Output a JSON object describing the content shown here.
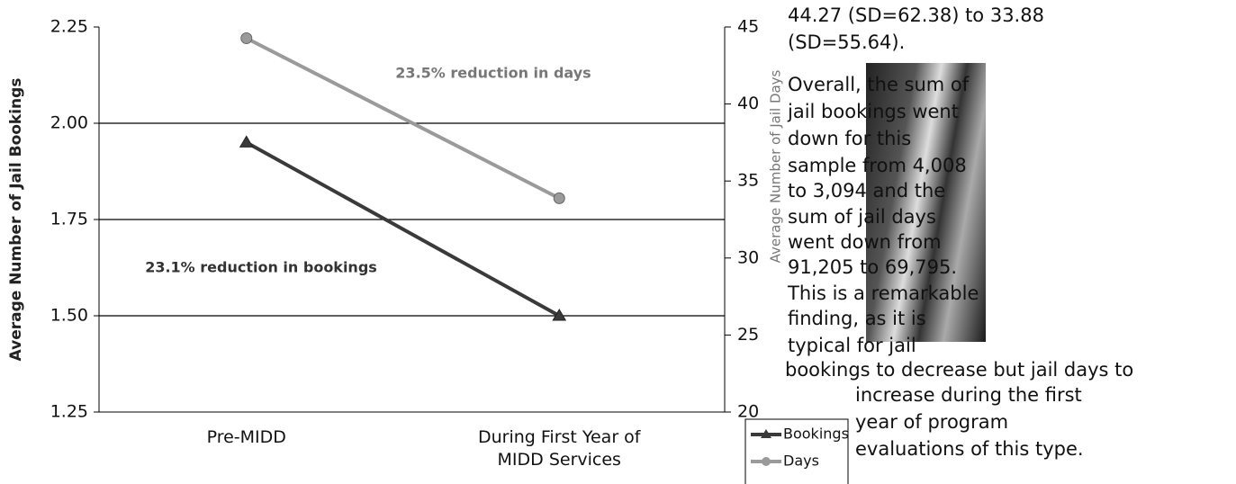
{
  "chart_data": {
    "type": "line",
    "categories": [
      "Pre-MIDD",
      "During First Year of MIDD Services"
    ],
    "ylabel": "Average Number of Jail Bookings",
    "y2label": "Average Number of Jail Days",
    "ylim": [
      1.25,
      2.25
    ],
    "yticks": [
      1.25,
      {
        "value": 1.5,
        "label": "1.50"
      },
      1.75,
      {
        "value": 2,
        "label": "2.00"
      },
      2.25
    ],
    "y2lim": [
      20,
      45
    ],
    "y2ticks": [
      20,
      25,
      30,
      35,
      40,
      45
    ],
    "grid": true,
    "series": [
      {
        "name": "Bookings",
        "color": "#3a3a3a",
        "marker": "triangle",
        "values": [
          1.95,
          1.5
        ]
      },
      {
        "name": "Days",
        "color": "#9a9a9a",
        "marker": "circle",
        "axis": "y2",
        "values": [
          44.27,
          33.88
        ]
      }
    ],
    "annotations": [
      "23.5% reduction in days",
      "23.1% reduction in bookings"
    ]
  },
  "text": {
    "lines": [
      "44.27 (SD=62.38) to 33.88",
      "(SD=55.64).",
      "Overall, the sum of",
      "jail bookings went",
      "down for this",
      "sample from 4,008",
      "to 3,094 and the",
      "sum of jail days",
      "went down from",
      "91,205 to 69,795.",
      "This is a remarkable",
      "finding, as it is",
      "typical for jail",
      "bookings to decrease but jail days to",
      "increase during the first",
      "year of program",
      "evaluations of this type."
    ]
  }
}
